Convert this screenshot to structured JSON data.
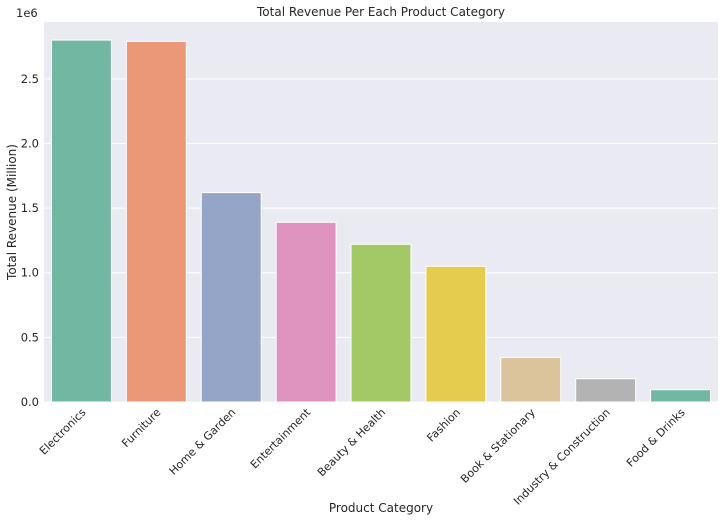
{
  "chart_data": {
    "type": "bar",
    "title": "Total Revenue Per Each Product Category",
    "xlabel": "Product Category",
    "ylabel": "Total Revenue (Million)",
    "y_offset_label": "1e6",
    "categories": [
      "Electronics",
      "Furniture",
      "Home & Garden",
      "Entertainment",
      "Beauty & Health",
      "Fashion",
      "Book & Stationary",
      "Industry & Construction",
      "Food & Drinks"
    ],
    "values": [
      2.8,
      2.79,
      1.62,
      1.39,
      1.22,
      1.05,
      0.345,
      0.18,
      0.095
    ],
    "colors": [
      "#72b7a1",
      "#ea9877",
      "#95a5c7",
      "#df94c0",
      "#a3c966",
      "#e6cc4d",
      "#dbc39c",
      "#b3b3b3",
      "#72b7a1"
    ],
    "yticks": [
      0.0,
      0.5,
      1.0,
      1.5,
      2.0,
      2.5
    ],
    "ytick_labels": [
      "0.0",
      "0.5",
      "1.0",
      "1.5",
      "2.0",
      "2.5"
    ],
    "ylim": [
      0,
      2.94
    ],
    "grid": true,
    "background": "#eaeaf2"
  }
}
